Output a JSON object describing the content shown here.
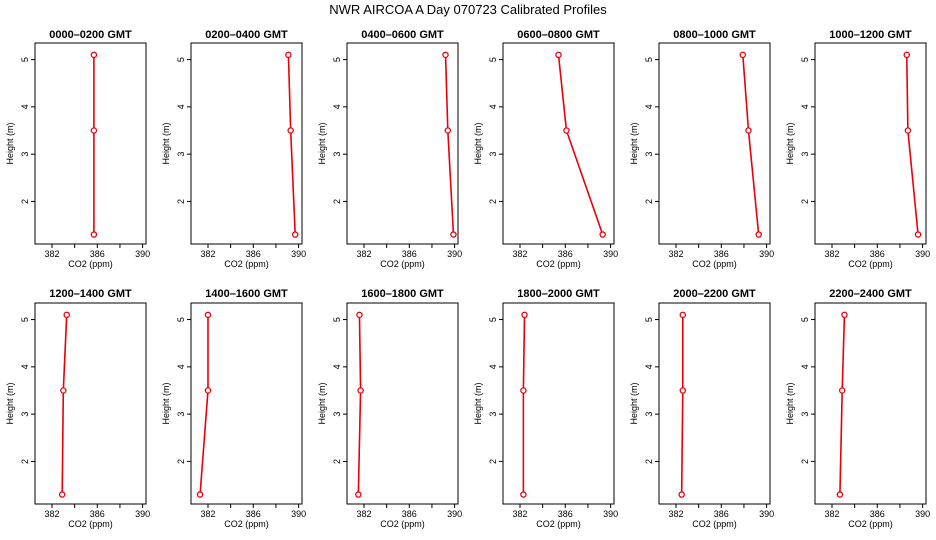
{
  "figure_title": "NWR AIRCOA A  Day 070723  Calibrated Profiles",
  "chart_data": {
    "type": "line",
    "title": "NWR AIRCOA A  Day 070723  Calibrated Profiles",
    "xlabel": "CO2 (ppm)",
    "ylabel": "Height (m)",
    "xlim": [
      380.5,
      390.3
    ],
    "ylim": [
      1.1,
      5.35
    ],
    "xticks": [
      382,
      386,
      390
    ],
    "xticks_minor": [
      384,
      388
    ],
    "yticks": [
      2,
      3,
      4,
      5
    ],
    "grid": false,
    "line_color": "#e8000b",
    "marker": "open-circle",
    "heights": [
      1.3,
      3.5,
      5.1
    ],
    "panels": [
      {
        "title": "0000–0200 GMT",
        "co2": [
          385.7,
          385.7,
          385.7
        ]
      },
      {
        "title": "0200–0400 GMT",
        "co2": [
          389.7,
          389.3,
          389.1
        ]
      },
      {
        "title": "0400–0600 GMT",
        "co2": [
          389.9,
          389.4,
          389.2
        ]
      },
      {
        "title": "0600–0800 GMT",
        "co2": [
          389.3,
          386.1,
          385.4
        ]
      },
      {
        "title": "0800–1000 GMT",
        "co2": [
          389.3,
          388.4,
          387.9
        ]
      },
      {
        "title": "1000–1200 GMT",
        "co2": [
          389.6,
          388.7,
          388.6
        ]
      },
      {
        "title": "1200–1400 GMT",
        "co2": [
          382.9,
          383.0,
          383.3
        ]
      },
      {
        "title": "1400–1600 GMT",
        "co2": [
          381.3,
          382.0,
          382.0
        ]
      },
      {
        "title": "1600–1800 GMT",
        "co2": [
          381.5,
          381.7,
          381.6
        ]
      },
      {
        "title": "1800–2000 GMT",
        "co2": [
          382.3,
          382.3,
          382.4
        ]
      },
      {
        "title": "2000–2200 GMT",
        "co2": [
          382.5,
          382.6,
          382.6
        ]
      },
      {
        "title": "2200–2400 GMT",
        "co2": [
          382.7,
          382.9,
          383.1
        ]
      }
    ]
  }
}
